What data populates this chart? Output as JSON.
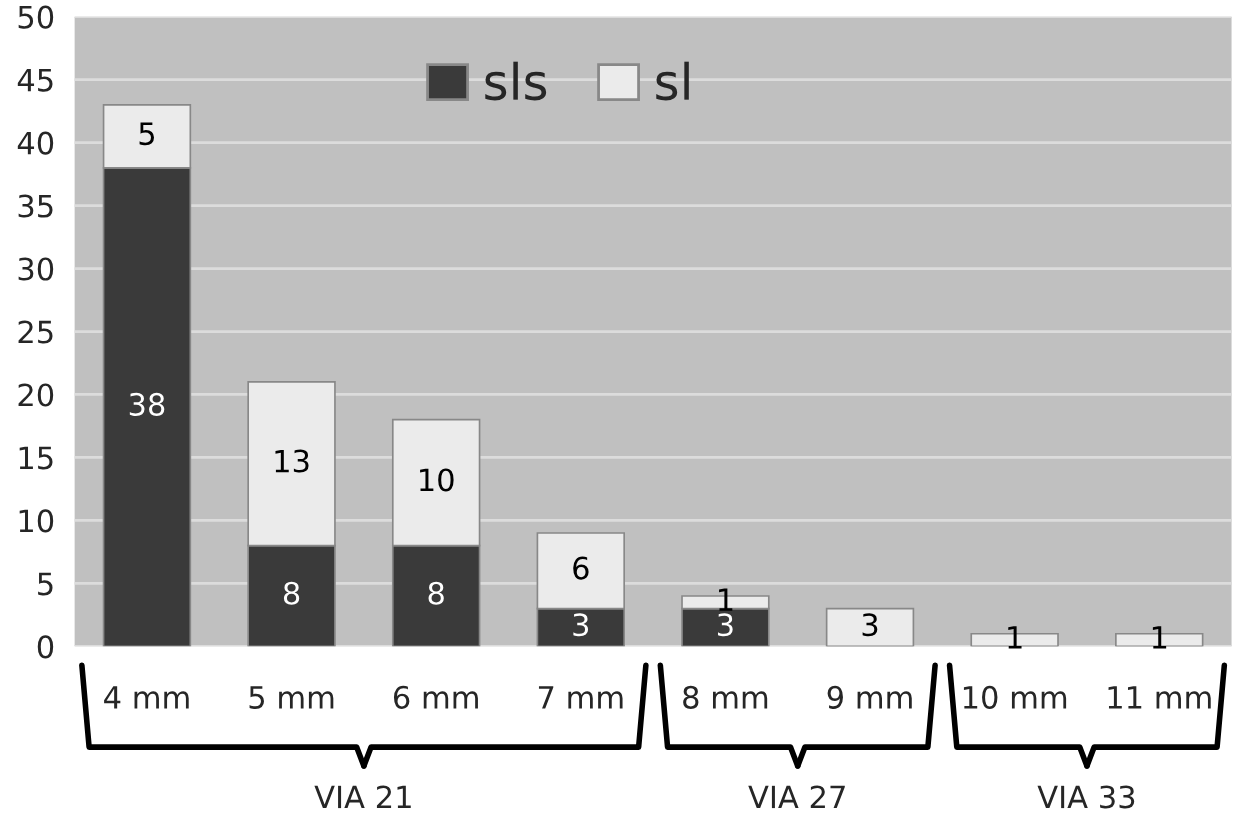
{
  "chart_data": {
    "type": "bar",
    "stacked": true,
    "categories": [
      "4 mm",
      "5 mm",
      "6 mm",
      "7 mm",
      "8 mm",
      "9 mm",
      "10 mm",
      "11 mm"
    ],
    "series": [
      {
        "name": "sls",
        "color": "#3a3a3a",
        "values": [
          38,
          8,
          8,
          3,
          3,
          0,
          0,
          0
        ],
        "value_labels": [
          "38",
          "8",
          "8",
          "3",
          "3",
          null,
          null,
          null
        ]
      },
      {
        "name": "sl",
        "color": "#ebebeb",
        "values": [
          5,
          13,
          10,
          6,
          1,
          3,
          1,
          1
        ],
        "value_labels": [
          "5",
          "13",
          "10",
          "6",
          "1",
          "3",
          "1",
          "1"
        ]
      }
    ],
    "ylim": [
      0,
      50
    ],
    "yticks": [
      0,
      5,
      10,
      15,
      20,
      25,
      30,
      35,
      40,
      45,
      50
    ],
    "grid": "y",
    "legend": "top",
    "annotations": [
      "VIA 21",
      "VIA 27",
      "VIA 33"
    ]
  }
}
